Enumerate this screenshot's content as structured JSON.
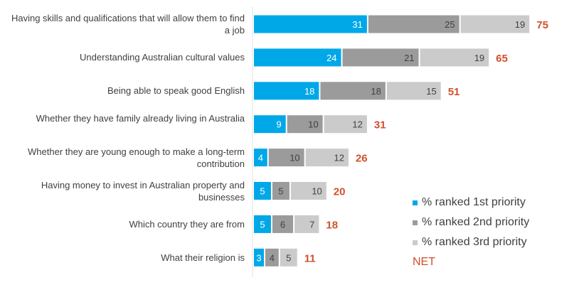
{
  "colors": {
    "first": "#00a8e8",
    "second": "#9b9b9b",
    "third": "#cbcbcb",
    "net": "#d0502a"
  },
  "chart_data": {
    "type": "bar",
    "orientation": "horizontal",
    "stacked": true,
    "categories": [
      "Having skills and qualifications that will allow them to find a job",
      "Understanding Australian cultural values",
      "Being able to speak good English",
      "Whether they have family already living in Australia",
      "Whether they are young enough to make a long-term contribution",
      "Having money to invest in Australian property and businesses",
      "Which country they are from",
      "What their religion is"
    ],
    "series": [
      {
        "name": "% ranked 1st priority",
        "values": [
          31,
          24,
          18,
          9,
          4,
          5,
          5,
          3
        ]
      },
      {
        "name": "% ranked 2nd priority",
        "values": [
          25,
          21,
          18,
          10,
          10,
          5,
          6,
          4
        ]
      },
      {
        "name": "% ranked 3rd priority",
        "values": [
          19,
          19,
          15,
          12,
          12,
          10,
          7,
          5
        ]
      }
    ],
    "net": {
      "name": "NET",
      "values": [
        75,
        65,
        51,
        31,
        26,
        20,
        18,
        11
      ]
    },
    "legend_position": "bottom-right",
    "grid": false
  }
}
